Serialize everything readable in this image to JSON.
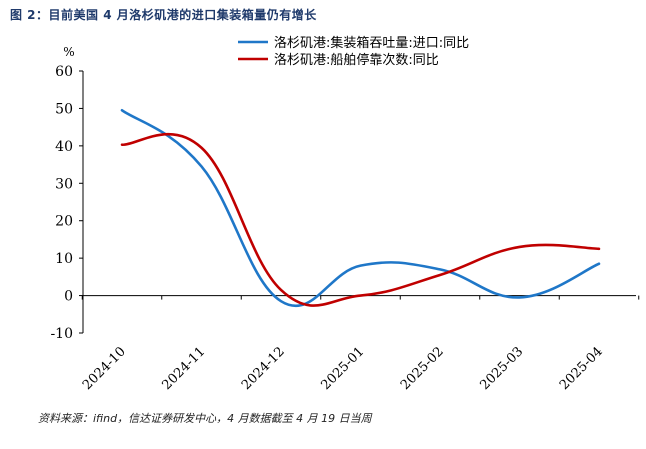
{
  "figure": {
    "title": "图 2：目前美国 4 月洛杉矶港的进口集装箱量仍有增长",
    "source": "资料来源：ifind，信达证券研发中心，4 月数据截至 4 月 19 日当周"
  },
  "chart_data": {
    "type": "line",
    "ylabel": "%",
    "ylim": [
      -10,
      60
    ],
    "yticks": [
      -10,
      0,
      10,
      20,
      30,
      40,
      50,
      60
    ],
    "categories": [
      "2024-10",
      "2024-11",
      "2024-12",
      "2025-01",
      "2025-02",
      "2025-03",
      "2025-04"
    ],
    "legend_position": "top-right",
    "grid": false,
    "series": [
      {
        "name": "洛杉矶港:集装箱吞吐量:进口:同比",
        "color": "#1f77c8",
        "values": [
          49.5,
          34.5,
          -1.5,
          8,
          7,
          -0.5,
          8.5
        ]
      },
      {
        "name": "洛杉矶港:船舶停靠次数:同比",
        "color": "#c00000",
        "values": [
          40.3,
          39.5,
          1.5,
          0,
          5.5,
          13,
          12.5
        ]
      }
    ]
  }
}
